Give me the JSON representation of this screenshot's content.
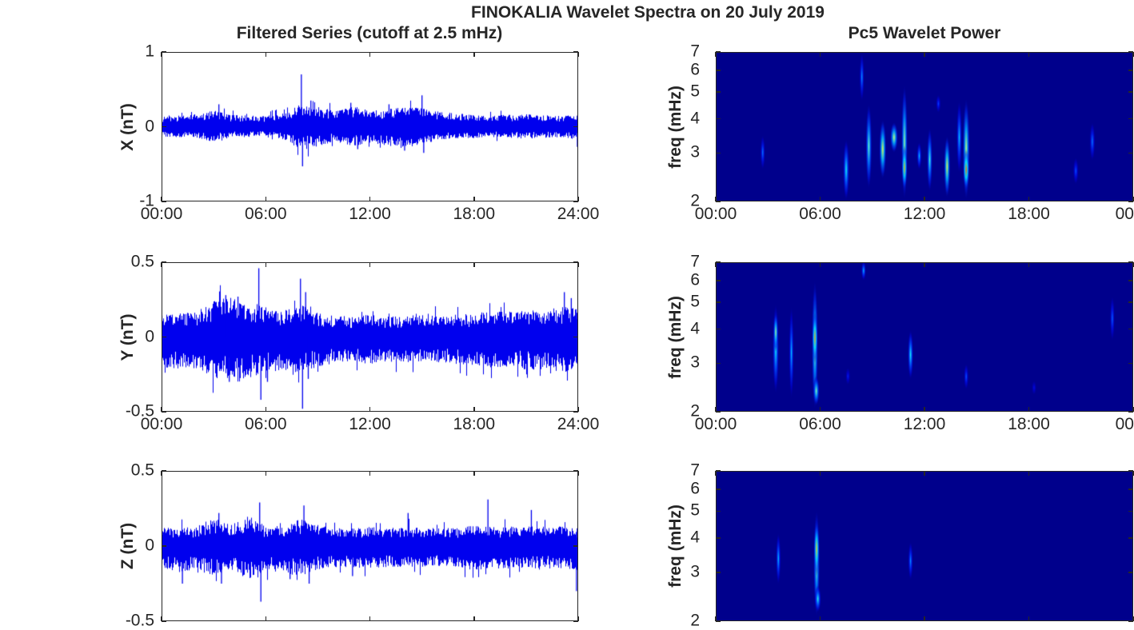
{
  "figure": {
    "title": "FINOKALIA Wavelet Spectra on 20 July 2019",
    "left_title": "Filtered Series (cutoff at 2.5 mHz)",
    "right_title": "Pc5 Wavelet Power",
    "background": "#ffffff",
    "text_color": "#262626",
    "axis_color": "#262626",
    "series_color": "#0000EE",
    "heatmap_background": "#00008C"
  },
  "chart_data": [
    {
      "name": "filtered-series-x",
      "type": "line",
      "ylabel": "X (nT)",
      "ylim": [
        -1,
        1
      ],
      "yticks": [
        1,
        0,
        -1
      ],
      "x_range_hours": [
        0,
        24
      ],
      "xtick_labels": [
        "00:00",
        "06:00",
        "12:00",
        "18:00",
        "24:00"
      ],
      "show_xtick_labels": true,
      "envelope_upper": [
        0.13,
        0.15,
        0.16,
        0.22,
        0.16,
        0.15,
        0.15,
        0.18,
        0.3,
        0.27,
        0.22,
        0.28,
        0.22,
        0.24,
        0.26,
        0.25,
        0.2,
        0.18,
        0.16,
        0.15,
        0.16,
        0.17,
        0.16,
        0.15,
        0.15
      ],
      "envelope_lower": [
        -0.13,
        -0.14,
        -0.15,
        -0.2,
        -0.15,
        -0.14,
        -0.14,
        -0.17,
        -0.3,
        -0.27,
        -0.2,
        -0.26,
        -0.22,
        -0.25,
        -0.3,
        -0.23,
        -0.18,
        -0.16,
        -0.15,
        -0.14,
        -0.15,
        -0.16,
        -0.15,
        -0.14,
        -0.18
      ],
      "spikes": [
        {
          "t": 3.3,
          "v": 0.3
        },
        {
          "t": 8.05,
          "v": 0.7
        },
        {
          "t": 8.12,
          "v": -0.53
        },
        {
          "t": 8.6,
          "v": 0.35
        },
        {
          "t": 10.9,
          "v": 0.32
        },
        {
          "t": 11.3,
          "v": -0.3
        },
        {
          "t": 13.1,
          "v": 0.3
        },
        {
          "t": 14.0,
          "v": -0.32
        },
        {
          "t": 15.0,
          "v": 0.42
        },
        {
          "t": 15.1,
          "v": -0.35
        },
        {
          "t": 23.95,
          "v": -0.27
        }
      ]
    },
    {
      "name": "filtered-series-y",
      "type": "line",
      "ylabel": "Y (nT)",
      "ylim": [
        -0.5,
        0.5
      ],
      "yticks": [
        0.5,
        0,
        -0.5
      ],
      "x_range_hours": [
        0,
        24
      ],
      "xtick_labels": [
        "00:00",
        "06:00",
        "12:00",
        "18:00",
        "24:00"
      ],
      "show_xtick_labels": true,
      "envelope_upper": [
        0.15,
        0.16,
        0.17,
        0.24,
        0.27,
        0.24,
        0.2,
        0.18,
        0.22,
        0.16,
        0.14,
        0.14,
        0.15,
        0.14,
        0.14,
        0.15,
        0.14,
        0.15,
        0.16,
        0.17,
        0.17,
        0.18,
        0.18,
        0.2,
        0.2
      ],
      "envelope_lower": [
        -0.2,
        -0.22,
        -0.22,
        -0.28,
        -0.31,
        -0.28,
        -0.24,
        -0.22,
        -0.26,
        -0.2,
        -0.18,
        -0.17,
        -0.18,
        -0.17,
        -0.17,
        -0.18,
        -0.17,
        -0.18,
        -0.19,
        -0.2,
        -0.2,
        -0.22,
        -0.22,
        -0.24,
        -0.22
      ],
      "spikes": [
        {
          "t": 3.7,
          "v": 0.28
        },
        {
          "t": 3.9,
          "v": -0.3
        },
        {
          "t": 4.4,
          "v": 0.27
        },
        {
          "t": 5.6,
          "v": 0.46
        },
        {
          "t": 5.72,
          "v": -0.42
        },
        {
          "t": 6.1,
          "v": -0.3
        },
        {
          "t": 8.0,
          "v": 0.39
        },
        {
          "t": 8.12,
          "v": -0.48
        },
        {
          "t": 8.3,
          "v": 0.3
        },
        {
          "t": 8.45,
          "v": -0.28
        },
        {
          "t": 23.2,
          "v": 0.3
        },
        {
          "t": 23.6,
          "v": 0.26
        }
      ]
    },
    {
      "name": "filtered-series-z",
      "type": "line",
      "ylabel": "Z (nT)",
      "ylim": [
        -0.5,
        0.5
      ],
      "yticks": [
        0.5,
        0,
        -0.5
      ],
      "x_range_hours": [
        0,
        24
      ],
      "xtick_labels": [
        "00:00",
        "06:00",
        "12:00",
        "18:00",
        "24:00"
      ],
      "show_xtick_labels": false,
      "envelope_upper": [
        0.12,
        0.13,
        0.13,
        0.18,
        0.14,
        0.2,
        0.14,
        0.13,
        0.18,
        0.14,
        0.12,
        0.12,
        0.13,
        0.12,
        0.13,
        0.12,
        0.12,
        0.12,
        0.14,
        0.13,
        0.13,
        0.13,
        0.13,
        0.13,
        0.13
      ],
      "envelope_lower": [
        -0.14,
        -0.18,
        -0.15,
        -0.2,
        -0.16,
        -0.22,
        -0.16,
        -0.18,
        -0.2,
        -0.16,
        -0.14,
        -0.14,
        -0.15,
        -0.14,
        -0.15,
        -0.14,
        -0.14,
        -0.14,
        -0.16,
        -0.15,
        -0.15,
        -0.15,
        -0.15,
        -0.15,
        -0.18
      ],
      "spikes": [
        {
          "t": 1.2,
          "v": -0.25
        },
        {
          "t": 3.3,
          "v": 0.22
        },
        {
          "t": 3.45,
          "v": -0.25
        },
        {
          "t": 5.65,
          "v": 0.29
        },
        {
          "t": 5.72,
          "v": -0.37
        },
        {
          "t": 7.4,
          "v": -0.22
        },
        {
          "t": 8.2,
          "v": 0.27
        },
        {
          "t": 8.5,
          "v": -0.25
        },
        {
          "t": 11.0,
          "v": -0.2
        },
        {
          "t": 14.2,
          "v": 0.22
        },
        {
          "t": 18.8,
          "v": 0.31
        },
        {
          "t": 21.3,
          "v": 0.24
        },
        {
          "t": 23.9,
          "v": -0.3
        }
      ]
    },
    {
      "name": "pc5-wavelet-power-x",
      "type": "heatmap",
      "ylabel": "freq (mHz)",
      "yscale": "log",
      "ylim": [
        2,
        7
      ],
      "yticks": [
        7,
        6,
        5,
        4,
        3,
        2
      ],
      "x_range_hours": [
        0,
        24
      ],
      "xtick_labels": [
        "00:00",
        "06:00",
        "12:00",
        "18:00",
        "00"
      ],
      "show_xtick_labels": true,
      "blobs": [
        {
          "t": 2.7,
          "f_lo": 2.6,
          "f_hi": 3.5,
          "i": 0.38,
          "w": 3
        },
        {
          "t": 7.5,
          "f_lo": 2.0,
          "f_hi": 3.4,
          "i": 0.6,
          "w": 4
        },
        {
          "t": 8.4,
          "f_lo": 4.6,
          "f_hi": 7.0,
          "i": 0.42,
          "w": 3
        },
        {
          "t": 8.8,
          "f_lo": 2.2,
          "f_hi": 4.6,
          "i": 0.68,
          "w": 4
        },
        {
          "t": 9.6,
          "f_lo": 2.4,
          "f_hi": 4.0,
          "i": 0.85,
          "w": 4.5
        },
        {
          "t": 10.25,
          "f_lo": 3.0,
          "f_hi": 3.9,
          "i": 0.8,
          "w": 5
        },
        {
          "t": 10.85,
          "f_lo": 2.0,
          "f_hi": 5.4,
          "i": 0.75,
          "w": 4
        },
        {
          "t": 10.85,
          "f_lo": 2.2,
          "f_hi": 3.2,
          "i": 0.95,
          "w": 3.5
        },
        {
          "t": 11.7,
          "f_lo": 2.6,
          "f_hi": 3.3,
          "i": 0.5,
          "w": 3
        },
        {
          "t": 12.3,
          "f_lo": 2.15,
          "f_hi": 3.75,
          "i": 0.65,
          "w": 3.5
        },
        {
          "t": 12.8,
          "f_lo": 4.2,
          "f_hi": 4.9,
          "i": 0.3,
          "w": 3
        },
        {
          "t": 13.3,
          "f_lo": 2.05,
          "f_hi": 3.5,
          "i": 0.85,
          "w": 4
        },
        {
          "t": 14.0,
          "f_lo": 2.5,
          "f_hi": 4.7,
          "i": 0.5,
          "w": 3.5
        },
        {
          "t": 14.4,
          "f_lo": 2.0,
          "f_hi": 4.8,
          "i": 0.8,
          "w": 4.5
        },
        {
          "t": 14.4,
          "f_lo": 2.2,
          "f_hi": 3.1,
          "i": 1.0,
          "w": 4
        },
        {
          "t": 20.7,
          "f_lo": 2.3,
          "f_hi": 2.9,
          "i": 0.32,
          "w": 3.5
        },
        {
          "t": 21.65,
          "f_lo": 2.8,
          "f_hi": 3.9,
          "i": 0.38,
          "w": 3.5
        }
      ]
    },
    {
      "name": "pc5-wavelet-power-y",
      "type": "heatmap",
      "ylabel": "freq (mHz)",
      "yscale": "log",
      "ylim": [
        2,
        7
      ],
      "yticks": [
        7,
        6,
        5,
        4,
        3,
        2
      ],
      "x_range_hours": [
        0,
        24
      ],
      "xtick_labels": [
        "00:00",
        "06:00",
        "12:00",
        "18:00",
        "00"
      ],
      "show_xtick_labels": true,
      "blobs": [
        {
          "t": 3.45,
          "f_lo": 2.3,
          "f_hi": 5.0,
          "i": 0.6,
          "w": 4
        },
        {
          "t": 3.45,
          "f_lo": 3.3,
          "f_hi": 4.6,
          "i": 0.78,
          "w": 3
        },
        {
          "t": 4.35,
          "f_lo": 2.2,
          "f_hi": 4.9,
          "i": 0.5,
          "w": 3
        },
        {
          "t": 5.7,
          "f_lo": 2.0,
          "f_hi": 6.1,
          "i": 0.75,
          "w": 4
        },
        {
          "t": 5.7,
          "f_lo": 3.0,
          "f_hi": 4.6,
          "i": 0.97,
          "w": 3.5
        },
        {
          "t": 5.78,
          "f_lo": 2.1,
          "f_hi": 2.7,
          "i": 0.72,
          "w": 4
        },
        {
          "t": 7.6,
          "f_lo": 2.5,
          "f_hi": 2.9,
          "i": 0.22,
          "w": 3
        },
        {
          "t": 8.5,
          "f_lo": 6.0,
          "f_hi": 7.1,
          "i": 0.5,
          "w": 3
        },
        {
          "t": 11.2,
          "f_lo": 2.6,
          "f_hi": 4.0,
          "i": 0.6,
          "w": 3.5
        },
        {
          "t": 14.4,
          "f_lo": 2.4,
          "f_hi": 3.0,
          "i": 0.33,
          "w": 3
        },
        {
          "t": 18.3,
          "f_lo": 2.3,
          "f_hi": 2.6,
          "i": 0.18,
          "w": 3
        },
        {
          "t": 22.8,
          "f_lo": 3.6,
          "f_hi": 5.3,
          "i": 0.35,
          "w": 3
        }
      ]
    },
    {
      "name": "pc5-wavelet-power-z",
      "type": "heatmap",
      "ylabel": "freq (mHz)",
      "yscale": "log",
      "ylim": [
        2,
        7
      ],
      "yticks": [
        7,
        6,
        5,
        4,
        3,
        2
      ],
      "x_range_hours": [
        0,
        24
      ],
      "xtick_labels": [
        "00:00",
        "06:00",
        "12:00",
        "18:00",
        "00"
      ],
      "show_xtick_labels": false,
      "blobs": [
        {
          "t": 3.6,
          "f_lo": 2.7,
          "f_hi": 4.2,
          "i": 0.5,
          "w": 3
        },
        {
          "t": 5.8,
          "f_lo": 2.05,
          "f_hi": 5.1,
          "i": 0.72,
          "w": 4
        },
        {
          "t": 5.8,
          "f_lo": 2.9,
          "f_hi": 4.6,
          "i": 0.92,
          "w": 3.5
        },
        {
          "t": 5.87,
          "f_lo": 2.15,
          "f_hi": 2.7,
          "i": 0.62,
          "w": 4
        },
        {
          "t": 11.2,
          "f_lo": 2.8,
          "f_hi": 3.9,
          "i": 0.42,
          "w": 3
        }
      ]
    }
  ]
}
